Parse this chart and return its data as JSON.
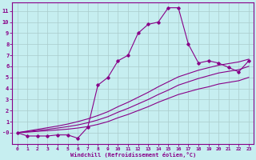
{
  "xlabel": "Windchill (Refroidissement éolien,°C)",
  "bg_color": "#c6eef0",
  "line_color": "#880088",
  "grid_color": "#aacccc",
  "xlim": [
    -0.5,
    23.5
  ],
  "ylim": [
    -1.0,
    11.8
  ],
  "xticks": [
    0,
    1,
    2,
    3,
    4,
    5,
    6,
    7,
    8,
    9,
    10,
    11,
    12,
    13,
    14,
    15,
    16,
    17,
    18,
    19,
    20,
    21,
    22,
    23
  ],
  "yticks": [
    0,
    1,
    2,
    3,
    4,
    5,
    6,
    7,
    8,
    9,
    10,
    11
  ],
  "ytick_labels": [
    "-0",
    "1",
    "2",
    "3",
    "4",
    "5",
    "6",
    "7",
    "8",
    "9",
    "10",
    "11"
  ],
  "main_x": [
    0,
    1,
    2,
    3,
    4,
    5,
    6,
    7,
    8,
    9,
    10,
    11,
    12,
    13,
    14,
    15,
    16,
    17,
    18,
    19,
    20,
    21,
    22,
    23
  ],
  "main_y": [
    0,
    -0.3,
    -0.3,
    -0.3,
    -0.2,
    -0.2,
    -0.5,
    0.5,
    4.3,
    5.0,
    6.5,
    7.0,
    9.0,
    9.8,
    10.0,
    11.3,
    11.3,
    8.0,
    6.3,
    6.5,
    6.3,
    5.9,
    5.5,
    6.5
  ],
  "smooth1_x": [
    0,
    1,
    2,
    3,
    4,
    5,
    6,
    7,
    8,
    9,
    10,
    11,
    12,
    13,
    14,
    15,
    16,
    17,
    18,
    19,
    20,
    21,
    22,
    23
  ],
  "smooth1_y": [
    0,
    0.05,
    0.12,
    0.18,
    0.25,
    0.32,
    0.42,
    0.55,
    0.75,
    1.0,
    1.35,
    1.65,
    2.0,
    2.35,
    2.75,
    3.1,
    3.45,
    3.7,
    3.95,
    4.15,
    4.4,
    4.55,
    4.7,
    5.0
  ],
  "smooth2_x": [
    0,
    1,
    2,
    3,
    4,
    5,
    6,
    7,
    8,
    9,
    10,
    11,
    12,
    13,
    14,
    15,
    16,
    17,
    18,
    19,
    20,
    21,
    22,
    23
  ],
  "smooth2_y": [
    0,
    0.1,
    0.2,
    0.3,
    0.42,
    0.55,
    0.7,
    0.9,
    1.15,
    1.45,
    1.85,
    2.2,
    2.6,
    3.0,
    3.45,
    3.85,
    4.3,
    4.6,
    4.9,
    5.15,
    5.4,
    5.55,
    5.7,
    6.0
  ],
  "smooth3_x": [
    0,
    1,
    2,
    3,
    4,
    5,
    6,
    7,
    8,
    9,
    10,
    11,
    12,
    13,
    14,
    15,
    16,
    17,
    18,
    19,
    20,
    21,
    22,
    23
  ],
  "smooth3_y": [
    0,
    0.15,
    0.3,
    0.45,
    0.6,
    0.78,
    1.0,
    1.25,
    1.55,
    1.9,
    2.35,
    2.75,
    3.2,
    3.65,
    4.15,
    4.6,
    5.05,
    5.35,
    5.65,
    5.88,
    6.1,
    6.25,
    6.4,
    6.65
  ]
}
